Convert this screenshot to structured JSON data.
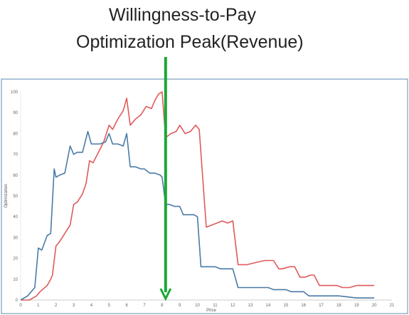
{
  "title": {
    "line1": "Willingness-to-Pay",
    "line2": "Optimization  Peak(Revenue)"
  },
  "colors": {
    "red_series": "#e05a5a",
    "blue_series": "#4a7ba6",
    "arrow": "#1aa838",
    "frame": "#7a9cbf"
  },
  "chart_data": {
    "type": "line",
    "xlabel": "Price",
    "ylabel": "Optimization",
    "xlim": [
      0,
      21
    ],
    "ylim": [
      0,
      100
    ],
    "x_ticks": [
      0,
      1,
      2,
      3,
      4,
      5,
      6,
      7,
      8,
      9,
      10,
      11,
      12,
      13,
      14,
      15,
      16,
      17,
      18,
      19,
      20,
      21
    ],
    "y_ticks": [
      0,
      10,
      20,
      30,
      40,
      50,
      60,
      70,
      80,
      90,
      100
    ],
    "grid": false,
    "annotation": {
      "type": "vertical-arrow",
      "x": 8.2,
      "points_to": "x-axis"
    },
    "series": [
      {
        "color": "red",
        "x": [
          0,
          0.5,
          0.9,
          1.1,
          1.5,
          1.7,
          1.8,
          2.0,
          2.2,
          2.5,
          2.8,
          3.0,
          3.2,
          3.5,
          3.7,
          3.9,
          4.1,
          4.4,
          4.7,
          5.0,
          5.2,
          5.5,
          5.8,
          6.0,
          6.2,
          6.5,
          6.8,
          7.1,
          7.4,
          7.6,
          7.8,
          8.0,
          8.2,
          8.5,
          8.8,
          9.0,
          9.3,
          9.6,
          9.9,
          10.1,
          10.5,
          10.8,
          11.1,
          11.4,
          11.7,
          12.0,
          12.3,
          12.8,
          13.3,
          13.8,
          14.3,
          14.6,
          14.8,
          15.2,
          15.5,
          15.8,
          16.1,
          16.4,
          16.6,
          16.9,
          17.2,
          17.5,
          17.9,
          18.2,
          18.6,
          19.0,
          19.5,
          20.0
        ],
        "values": [
          0,
          0,
          2,
          4,
          7,
          10,
          12,
          26,
          28,
          32,
          36,
          46,
          47,
          51,
          56,
          67,
          66,
          71,
          76,
          84,
          82,
          87,
          91,
          97,
          84,
          87,
          89,
          93,
          92,
          96,
          99,
          100,
          78,
          80,
          81,
          84,
          80,
          81,
          84,
          82,
          35,
          36,
          37,
          38,
          37,
          38,
          17,
          17,
          18,
          19,
          19,
          15,
          15,
          16,
          16,
          11,
          11,
          12,
          12,
          7,
          7,
          7,
          7,
          6,
          6,
          7,
          7,
          7
        ]
      },
      {
        "color": "blue",
        "x": [
          0,
          0.4,
          0.8,
          1.0,
          1.2,
          1.5,
          1.7,
          1.9,
          2.0,
          2.2,
          2.5,
          2.8,
          3.0,
          3.2,
          3.5,
          3.8,
          4.0,
          4.2,
          4.5,
          4.8,
          5.0,
          5.2,
          5.5,
          5.8,
          6.0,
          6.2,
          6.5,
          6.8,
          7.0,
          7.3,
          7.6,
          7.9,
          8.0,
          8.2,
          8.4,
          8.7,
          9.0,
          9.2,
          9.5,
          9.8,
          10.0,
          10.2,
          10.5,
          10.8,
          11.0,
          11.3,
          11.7,
          12.0,
          12.3,
          12.8,
          13.3,
          14.0,
          14.3,
          15.0,
          15.3,
          16.0,
          16.3,
          17.0,
          17.5,
          18.0,
          19.0,
          20.0
        ],
        "values": [
          0,
          2,
          6,
          25,
          24,
          31,
          32,
          63,
          59,
          60,
          61,
          74,
          70,
          71,
          71,
          81,
          75,
          75,
          75,
          76,
          80,
          75,
          75,
          74,
          80,
          64,
          64,
          63,
          63,
          61,
          61,
          60,
          59,
          46,
          46,
          45,
          45,
          41,
          41,
          41,
          40,
          16,
          16,
          16,
          16,
          15,
          15,
          15,
          6,
          6,
          6,
          6,
          5,
          5,
          4,
          4,
          2,
          2,
          2,
          2,
          1,
          1
        ]
      }
    ]
  }
}
